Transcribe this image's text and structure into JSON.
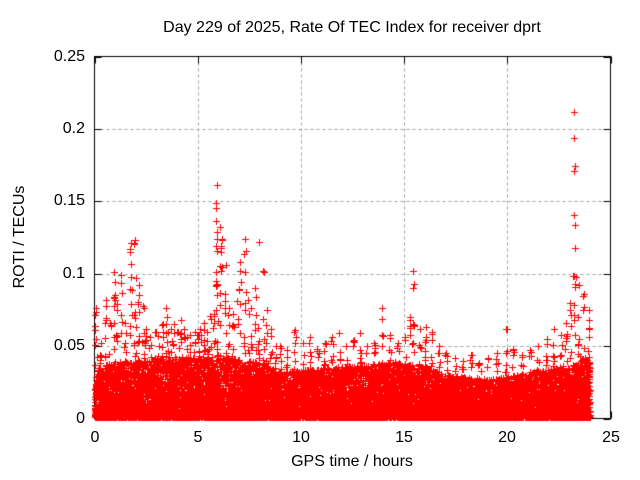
{
  "chart_data": {
    "type": "scatter",
    "title": "Day 229 of 2025, Rate Of TEC Index for receiver dprt",
    "xlabel": "GPS time / hours",
    "ylabel": "ROTI / TECUs",
    "xlim": [
      0,
      25
    ],
    "ylim": [
      0,
      0.25
    ],
    "xticks": [
      0,
      5,
      10,
      15,
      20,
      25
    ],
    "yticks": [
      0,
      0.05,
      0.1,
      0.15,
      0.2,
      0.25
    ],
    "xtick_labels": [
      "0",
      "5",
      "10",
      "15",
      "20",
      "25"
    ],
    "ytick_labels": [
      "0",
      "0.05",
      "0.1",
      "0.15",
      "0.2",
      "0.25"
    ],
    "grid": "dotted-major",
    "grid_color": "#a0a0a0",
    "marker": "plus",
    "marker_color": "#ff0000",
    "legend": "none",
    "time_range": [
      0,
      24
    ],
    "seed": 229,
    "background_band": {
      "n": 13000,
      "floor": 0.001,
      "power": 2.2,
      "envelope": [
        [
          0,
          0.034
        ],
        [
          1,
          0.038
        ],
        [
          3,
          0.04
        ],
        [
          6,
          0.042
        ],
        [
          8,
          0.038
        ],
        [
          9,
          0.031
        ],
        [
          11,
          0.034
        ],
        [
          13,
          0.036
        ],
        [
          14.5,
          0.038
        ],
        [
          16,
          0.035
        ],
        [
          17,
          0.029
        ],
        [
          19,
          0.026
        ],
        [
          20.5,
          0.029
        ],
        [
          22,
          0.033
        ],
        [
          23,
          0.036
        ],
        [
          24,
          0.042
        ]
      ]
    },
    "spike_clusters": [
      {
        "t": 0.08,
        "max": 0.076,
        "n": 9
      },
      {
        "t": 0.3,
        "max": 0.052,
        "n": 6
      },
      {
        "t": 0.55,
        "max": 0.082,
        "n": 9
      },
      {
        "t": 0.75,
        "max": 0.066,
        "n": 7
      },
      {
        "t": 0.95,
        "max": 0.101,
        "n": 11
      },
      {
        "t": 1.1,
        "max": 0.079,
        "n": 8
      },
      {
        "t": 1.3,
        "max": 0.099,
        "n": 7
      },
      {
        "t": 1.5,
        "max": 0.066,
        "n": 6
      },
      {
        "t": 1.75,
        "max": 0.121,
        "n": 12
      },
      {
        "t": 1.95,
        "max": 0.123,
        "n": 12
      },
      {
        "t": 2.15,
        "max": 0.092,
        "n": 10
      },
      {
        "t": 2.35,
        "max": 0.078,
        "n": 8
      },
      {
        "t": 2.5,
        "max": 0.062,
        "n": 6
      },
      {
        "t": 2.7,
        "max": 0.056,
        "n": 6
      },
      {
        "t": 2.95,
        "max": 0.06,
        "n": 6
      },
      {
        "t": 3.1,
        "max": 0.057,
        "n": 6
      },
      {
        "t": 3.3,
        "max": 0.065,
        "n": 7
      },
      {
        "t": 3.45,
        "max": 0.076,
        "n": 10
      },
      {
        "t": 3.55,
        "max": 0.06,
        "n": 5
      },
      {
        "t": 3.7,
        "max": 0.062,
        "n": 6
      },
      {
        "t": 3.85,
        "max": 0.065,
        "n": 6
      },
      {
        "t": 4.05,
        "max": 0.06,
        "n": 6
      },
      {
        "t": 4.2,
        "max": 0.068,
        "n": 8
      },
      {
        "t": 4.35,
        "max": 0.062,
        "n": 6
      },
      {
        "t": 4.5,
        "max": 0.056,
        "n": 5
      },
      {
        "t": 4.65,
        "max": 0.058,
        "n": 5
      },
      {
        "t": 4.85,
        "max": 0.06,
        "n": 6
      },
      {
        "t": 5.0,
        "max": 0.058,
        "n": 6
      },
      {
        "t": 5.1,
        "max": 0.062,
        "n": 6
      },
      {
        "t": 5.3,
        "max": 0.066,
        "n": 8
      },
      {
        "t": 5.45,
        "max": 0.06,
        "n": 5
      },
      {
        "t": 5.6,
        "max": 0.071,
        "n": 7
      },
      {
        "t": 5.8,
        "max": 0.072,
        "n": 6
      },
      {
        "t": 5.92,
        "max": 0.161,
        "n": 20
      },
      {
        "t": 6.1,
        "max": 0.132,
        "n": 14
      },
      {
        "t": 6.35,
        "max": 0.106,
        "n": 9
      },
      {
        "t": 6.5,
        "max": 0.076,
        "n": 6
      },
      {
        "t": 6.7,
        "max": 0.072,
        "n": 6
      },
      {
        "t": 6.9,
        "max": 0.081,
        "n": 7
      },
      {
        "t": 7.05,
        "max": 0.108,
        "n": 8
      },
      {
        "t": 7.28,
        "max": 0.124,
        "n": 11
      },
      {
        "t": 7.45,
        "max": 0.082,
        "n": 6
      },
      {
        "t": 7.6,
        "max": 0.076,
        "n": 6
      },
      {
        "t": 7.8,
        "max": 0.09,
        "n": 7
      },
      {
        "t": 7.95,
        "max": 0.122,
        "n": 8
      },
      {
        "t": 8.15,
        "max": 0.102,
        "n": 8
      },
      {
        "t": 8.35,
        "max": 0.075,
        "n": 6
      },
      {
        "t": 8.55,
        "max": 0.062,
        "n": 5
      },
      {
        "t": 8.8,
        "max": 0.05,
        "n": 5
      },
      {
        "t": 9.0,
        "max": 0.05,
        "n": 5
      },
      {
        "t": 9.35,
        "max": 0.047,
        "n": 5
      },
      {
        "t": 9.7,
        "max": 0.061,
        "n": 7
      },
      {
        "t": 10.1,
        "max": 0.052,
        "n": 5
      },
      {
        "t": 10.45,
        "max": 0.056,
        "n": 6
      },
      {
        "t": 10.8,
        "max": 0.048,
        "n": 5
      },
      {
        "t": 11.15,
        "max": 0.052,
        "n": 6
      },
      {
        "t": 11.5,
        "max": 0.056,
        "n": 6
      },
      {
        "t": 11.85,
        "max": 0.059,
        "n": 6
      },
      {
        "t": 12.2,
        "max": 0.05,
        "n": 5
      },
      {
        "t": 12.55,
        "max": 0.054,
        "n": 6
      },
      {
        "t": 12.85,
        "max": 0.059,
        "n": 6
      },
      {
        "t": 13.2,
        "max": 0.05,
        "n": 5
      },
      {
        "t": 13.55,
        "max": 0.052,
        "n": 5
      },
      {
        "t": 13.95,
        "max": 0.076,
        "n": 9
      },
      {
        "t": 14.3,
        "max": 0.058,
        "n": 6
      },
      {
        "t": 14.7,
        "max": 0.052,
        "n": 5
      },
      {
        "t": 15.05,
        "max": 0.056,
        "n": 6
      },
      {
        "t": 15.3,
        "max": 0.07,
        "n": 6
      },
      {
        "t": 15.45,
        "max": 0.102,
        "n": 10
      },
      {
        "t": 15.75,
        "max": 0.062,
        "n": 6
      },
      {
        "t": 16.05,
        "max": 0.063,
        "n": 7
      },
      {
        "t": 16.35,
        "max": 0.06,
        "n": 6
      },
      {
        "t": 16.7,
        "max": 0.05,
        "n": 5
      },
      {
        "t": 17.05,
        "max": 0.045,
        "n": 5
      },
      {
        "t": 17.45,
        "max": 0.042,
        "n": 4
      },
      {
        "t": 17.85,
        "max": 0.04,
        "n": 4
      },
      {
        "t": 18.25,
        "max": 0.044,
        "n": 5
      },
      {
        "t": 18.65,
        "max": 0.038,
        "n": 4
      },
      {
        "t": 19.05,
        "max": 0.042,
        "n": 4
      },
      {
        "t": 19.5,
        "max": 0.045,
        "n": 5
      },
      {
        "t": 19.95,
        "max": 0.062,
        "n": 7
      },
      {
        "t": 20.3,
        "max": 0.048,
        "n": 5
      },
      {
        "t": 20.7,
        "max": 0.044,
        "n": 4
      },
      {
        "t": 21.1,
        "max": 0.047,
        "n": 5
      },
      {
        "t": 21.5,
        "max": 0.05,
        "n": 5
      },
      {
        "t": 21.9,
        "max": 0.055,
        "n": 6
      },
      {
        "t": 22.25,
        "max": 0.062,
        "n": 7
      },
      {
        "t": 22.6,
        "max": 0.058,
        "n": 6
      },
      {
        "t": 22.85,
        "max": 0.066,
        "n": 7
      },
      {
        "t": 23.05,
        "max": 0.08,
        "n": 6
      },
      {
        "t": 23.25,
        "max": 0.212,
        "n": 16
      },
      {
        "t": 23.45,
        "max": 0.092,
        "n": 8
      },
      {
        "t": 23.7,
        "max": 0.086,
        "n": 8
      },
      {
        "t": 23.95,
        "max": 0.075,
        "n": 8
      }
    ]
  }
}
